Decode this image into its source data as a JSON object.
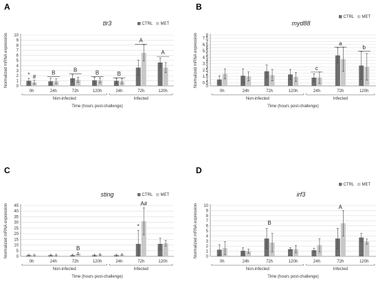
{
  "colors": {
    "ctrl": "#6e6e6e",
    "met": "#c8c8c8",
    "axis": "#888888",
    "grid": "#dcdcdc",
    "err": "#444444"
  },
  "chart_data": [
    {
      "panel": "A",
      "type": "bar",
      "title": "tlr3",
      "ylabel": "Normalized mRNA expression",
      "xlabel": "Time (hours post-challenge)",
      "ylim": [
        0,
        10
      ],
      "yticks": [
        0,
        1,
        2,
        3,
        4,
        5,
        6,
        7,
        8,
        9,
        10
      ],
      "grid": true,
      "legend": {
        "position": "top-right",
        "entries": [
          "CTRL",
          "MET"
        ]
      },
      "categories": [
        "0h",
        "24h",
        "72h",
        "120h",
        "24h",
        "72h",
        "120h"
      ],
      "groups": [
        {
          "label": "Non-infected",
          "from": 0,
          "to": 3
        },
        {
          "label": "Infected",
          "from": 4,
          "to": 6
        }
      ],
      "series": [
        {
          "name": "CTRL",
          "values": [
            1.0,
            0.9,
            1.5,
            1.1,
            1.0,
            3.6,
            4.6
          ],
          "errors": [
            0.5,
            0.6,
            0.7,
            0.6,
            0.5,
            1.5,
            0.9
          ]
        },
        {
          "name": "MET",
          "values": [
            0.7,
            0.9,
            1.2,
            1.1,
            0.9,
            6.5,
            3.6
          ],
          "errors": [
            0.4,
            0.5,
            0.5,
            0.5,
            0.5,
            1.6,
            1.0
          ]
        }
      ],
      "annotations": [
        {
          "text": "B",
          "category": 1,
          "y": 2.2,
          "bracket": true
        },
        {
          "text": "B",
          "category": 2,
          "y": 2.8,
          "bracket": true
        },
        {
          "text": "B",
          "category": 3,
          "y": 2.2,
          "bracket": true
        },
        {
          "text": "B",
          "category": 4,
          "y": 2.0,
          "bracket": true
        },
        {
          "text": "A",
          "category": 5,
          "y": 8.6,
          "bracket": true
        },
        {
          "text": "A",
          "category": 6,
          "y": 6.2,
          "bracket": true
        },
        {
          "text": "*",
          "category": 0,
          "series": 0,
          "y": 1.8
        },
        {
          "text": "#",
          "category": 0,
          "series": 1,
          "y": 1.4
        }
      ]
    },
    {
      "panel": "B",
      "type": "bar",
      "title": "myd88",
      "ylabel": "Normalized mRNA expression",
      "xlabel": "Time (hours post-challenge)",
      "ylim": [
        0,
        8
      ],
      "yticks": [
        0,
        0.5,
        1,
        1.5,
        2,
        2.5,
        3,
        3.5,
        4,
        4.5,
        5,
        5.5,
        6,
        6.5,
        7,
        7.5,
        8
      ],
      "grid": true,
      "legend": {
        "position": "top-right",
        "entries": [
          "CTRL",
          "MET"
        ]
      },
      "categories": [
        "0h",
        "24h",
        "72h",
        "120h",
        "24h",
        "72h",
        "120h"
      ],
      "groups": [
        {
          "label": "Non-infected",
          "from": 0,
          "to": 3
        },
        {
          "label": "Infected",
          "from": 4,
          "to": 6
        }
      ],
      "series": [
        {
          "name": "CTRL",
          "values": [
            1.0,
            1.6,
            2.3,
            1.8,
            1.3,
            4.8,
            3.2
          ],
          "errors": [
            0.6,
            1.1,
            1.0,
            0.8,
            0.6,
            1.2,
            2.2
          ]
        },
        {
          "name": "MET",
          "values": [
            1.9,
            1.5,
            1.7,
            1.4,
            1.3,
            4.2,
            3.0
          ],
          "errors": [
            0.8,
            0.7,
            0.9,
            0.7,
            0.9,
            1.9,
            2.1
          ]
        }
      ],
      "annotations": [
        {
          "text": "c",
          "category": 4,
          "y": 2.5,
          "bracket": true
        },
        {
          "text": "a",
          "category": 5,
          "y": 6.4,
          "bracket": true
        },
        {
          "text": "b",
          "category": 6,
          "y": 5.8,
          "bracket": true
        }
      ]
    },
    {
      "panel": "C",
      "type": "bar",
      "title": "sting",
      "ylabel": "Normalized mRNA expression",
      "xlabel": "Time (hours post-challenge)",
      "ylim": [
        0,
        45
      ],
      "yticks": [
        0,
        5,
        10,
        15,
        20,
        25,
        30,
        35,
        40,
        45
      ],
      "grid": true,
      "legend": {
        "position": "top-right",
        "entries": [
          "CTRL",
          "MET"
        ]
      },
      "categories": [
        "0h",
        "24h",
        "72h",
        "120h",
        "24h",
        "72h",
        "120h"
      ],
      "groups": [
        {
          "label": "Non-infected",
          "from": 0,
          "to": 3
        },
        {
          "label": "Infected",
          "from": 4,
          "to": 6
        }
      ],
      "series": [
        {
          "name": "CTRL",
          "values": [
            1.0,
            1.0,
            1.0,
            1.0,
            1.0,
            11.0,
            11.0
          ],
          "errors": [
            0.8,
            0.8,
            0.8,
            0.8,
            0.8,
            12.0,
            5.0
          ]
        },
        {
          "name": "MET",
          "values": [
            1.0,
            1.0,
            2.5,
            1.5,
            1.5,
            31.0,
            11.5
          ],
          "errors": [
            0.8,
            0.8,
            1.0,
            0.8,
            0.8,
            12.0,
            2.5
          ]
        }
      ],
      "annotations": [
        {
          "text": "B",
          "category": 2,
          "series": 1,
          "y": 5.5
        },
        {
          "text": "A#",
          "category": 5,
          "series": 1,
          "y": 45
        },
        {
          "text": "*",
          "category": 5,
          "series": 0,
          "y": 25
        }
      ]
    },
    {
      "panel": "D",
      "type": "bar",
      "title": "irf3",
      "ylabel": "Normalized mRNA expression",
      "xlabel": "Time (hours post-challenge)",
      "ylim": [
        0,
        10
      ],
      "yticks": [
        0,
        1,
        2,
        3,
        4,
        5,
        6,
        7,
        8,
        9,
        10
      ],
      "grid": true,
      "legend": {
        "position": "top-right",
        "entries": [
          "CTRL",
          "MET"
        ]
      },
      "categories": [
        "0h",
        "24h",
        "72h",
        "120h",
        "24h",
        "72h",
        "120h"
      ],
      "groups": [
        {
          "label": "Non-infected",
          "from": 0,
          "to": 3
        },
        {
          "label": "Infected",
          "from": 4,
          "to": 6
        }
      ],
      "series": [
        {
          "name": "CTRL",
          "values": [
            1.3,
            1.1,
            3.5,
            1.4,
            1.2,
            3.5,
            3.7
          ],
          "errors": [
            1.0,
            0.6,
            2.0,
            0.3,
            0.4,
            2.0,
            0.8
          ]
        },
        {
          "name": "MET",
          "values": [
            1.6,
            1.0,
            2.7,
            1.4,
            2.2,
            6.5,
            2.9
          ],
          "errors": [
            1.3,
            0.4,
            1.8,
            0.7,
            1.3,
            2.5,
            0.5
          ]
        }
      ],
      "annotations": [
        {
          "text": "B",
          "category": 2,
          "y": 6.2
        },
        {
          "text": "A",
          "category": 5,
          "y": 9.3
        }
      ]
    }
  ]
}
